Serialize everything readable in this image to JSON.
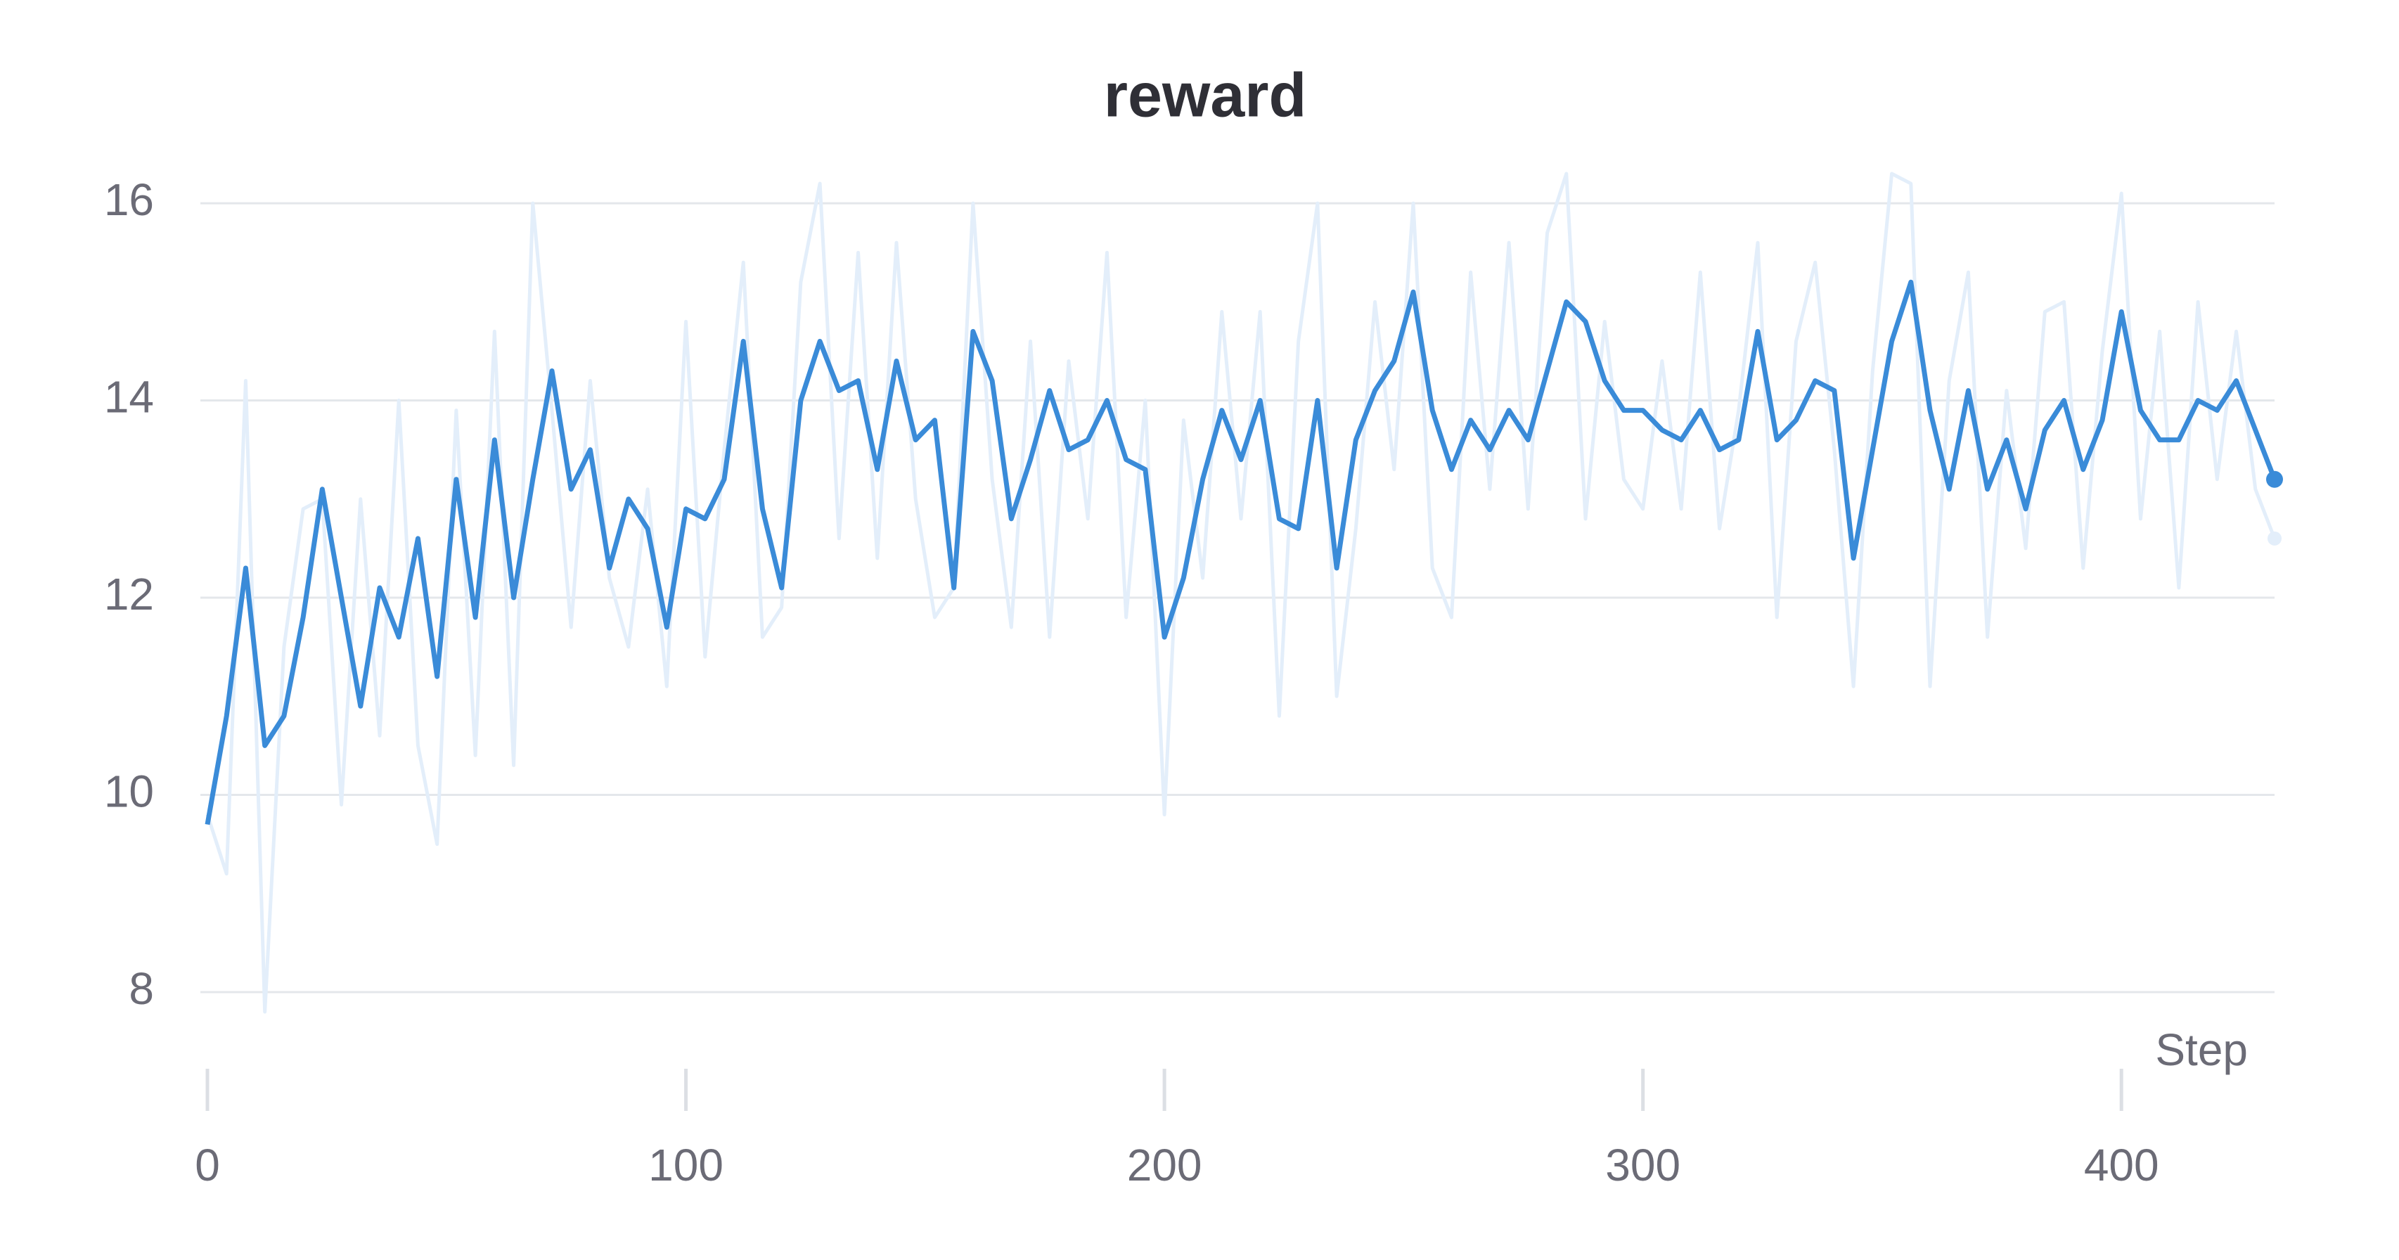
{
  "chart_data": {
    "type": "line",
    "title": "reward",
    "xlabel": "Step",
    "x": [
      0,
      4,
      8,
      12,
      16,
      20,
      24,
      28,
      32,
      36,
      40,
      44,
      48,
      52,
      56,
      60,
      64,
      68,
      72,
      76,
      80,
      84,
      88,
      92,
      96,
      100,
      104,
      108,
      112,
      116,
      120,
      124,
      128,
      132,
      136,
      140,
      144,
      148,
      152,
      156,
      160,
      164,
      168,
      172,
      176,
      180,
      184,
      188,
      192,
      196,
      200,
      204,
      208,
      212,
      216,
      220,
      224,
      228,
      232,
      236,
      240,
      244,
      248,
      252,
      256,
      260,
      264,
      268,
      272,
      276,
      280,
      284,
      288,
      292,
      296,
      300,
      304,
      308,
      312,
      316,
      320,
      324,
      328,
      332,
      336,
      340,
      344,
      348,
      352,
      356,
      360,
      364,
      368,
      372,
      376,
      380,
      384,
      388,
      392,
      396,
      400,
      404,
      408,
      412,
      416,
      420,
      424,
      428,
      432
    ],
    "series": [
      {
        "color": "#e3eefa",
        "values": [
          9.8,
          9.2,
          14.2,
          7.8,
          11.5,
          12.9,
          13.0,
          9.9,
          13.0,
          10.6,
          14.0,
          10.5,
          9.5,
          13.9,
          10.4,
          14.7,
          10.3,
          16.0,
          13.9,
          11.7,
          14.2,
          12.2,
          11.5,
          13.1,
          11.1,
          14.8,
          11.4,
          13.5,
          15.4,
          11.6,
          11.9,
          15.2,
          16.2,
          12.6,
          15.5,
          12.4,
          15.6,
          13.0,
          11.8,
          12.1,
          16.0,
          13.2,
          11.7,
          14.6,
          11.6,
          14.4,
          12.8,
          15.5,
          11.8,
          14.0,
          9.8,
          13.8,
          12.2,
          14.9,
          12.8,
          14.9,
          10.8,
          14.6,
          16.0,
          11.0,
          12.7,
          15.0,
          13.3,
          16.0,
          12.3,
          11.8,
          15.3,
          13.1,
          15.6,
          12.9,
          15.7,
          16.3,
          12.8,
          14.8,
          13.2,
          12.9,
          14.4,
          12.9,
          15.3,
          12.7,
          13.9,
          15.6,
          11.8,
          14.6,
          15.4,
          13.5,
          11.1,
          14.3,
          16.3,
          16.2,
          11.1,
          14.2,
          15.3,
          11.6,
          14.1,
          12.5,
          14.9,
          15.0,
          12.3,
          14.5,
          16.1,
          12.8,
          14.7,
          12.1,
          15.0,
          13.2,
          14.7,
          13.1,
          12.6
        ]
      },
      {
        "color": "#3a8bd8",
        "values": [
          9.7,
          10.8,
          12.3,
          10.5,
          10.8,
          11.8,
          13.1,
          12.0,
          10.9,
          12.1,
          11.6,
          12.6,
          11.2,
          13.2,
          11.8,
          13.6,
          12.0,
          13.2,
          14.3,
          13.1,
          13.5,
          12.3,
          13.0,
          12.7,
          11.7,
          12.9,
          12.8,
          13.2,
          14.6,
          12.9,
          12.1,
          14.0,
          14.6,
          14.1,
          14.2,
          13.3,
          14.4,
          13.6,
          13.8,
          12.1,
          14.7,
          14.2,
          12.8,
          13.4,
          14.1,
          13.5,
          13.6,
          14.0,
          13.4,
          13.3,
          11.6,
          12.2,
          13.2,
          13.9,
          13.4,
          14.0,
          12.8,
          12.7,
          14.0,
          12.3,
          13.6,
          14.1,
          14.4,
          15.1,
          13.9,
          13.3,
          13.8,
          13.5,
          13.9,
          13.6,
          14.3,
          15.0,
          14.8,
          14.2,
          13.9,
          13.9,
          13.7,
          13.6,
          13.9,
          13.5,
          13.6,
          14.7,
          13.6,
          13.8,
          14.2,
          14.1,
          12.4,
          13.5,
          14.6,
          15.2,
          13.9,
          13.1,
          14.1,
          13.1,
          13.6,
          12.9,
          13.7,
          14.0,
          13.3,
          13.8,
          14.9,
          13.9,
          13.6,
          13.6,
          14.0,
          13.9,
          14.2,
          13.7,
          13.2
        ]
      }
    ],
    "xlim": [
      0,
      432
    ],
    "xticks": [
      0,
      100,
      200,
      300,
      400
    ],
    "ylim": [
      7.8,
      16.35
    ],
    "yticks": [
      8,
      10,
      12,
      14,
      16
    ],
    "grid": true
  }
}
